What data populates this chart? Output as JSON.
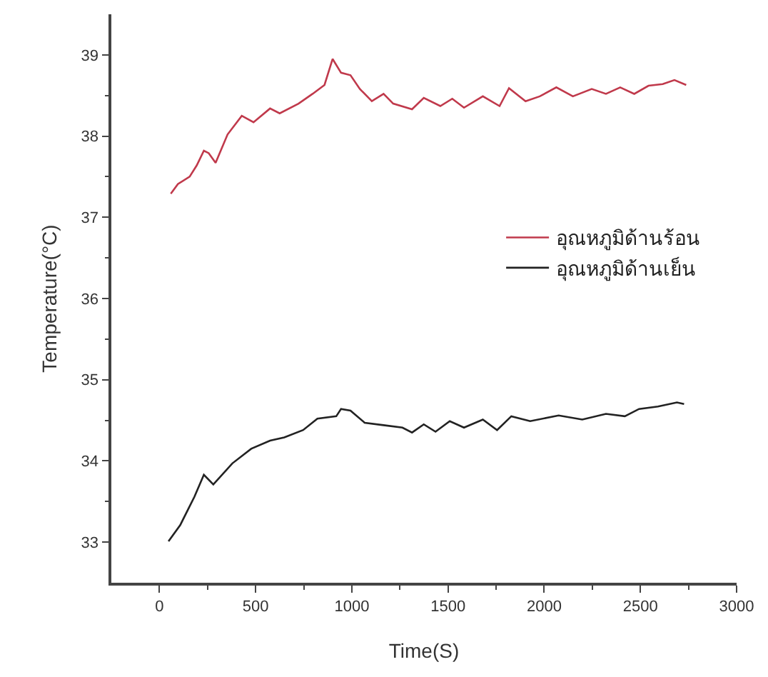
{
  "chart_data": {
    "type": "line",
    "xlabel": "Time(S)",
    "ylabel": "Temperature(°C)",
    "xlim": [
      -250,
      3000
    ],
    "xticks": [
      0,
      500,
      1000,
      1500,
      2000,
      2500,
      3000
    ],
    "ylim": [
      32.5,
      39.5
    ],
    "yticks": [
      33,
      34,
      35,
      36,
      37,
      38,
      39
    ],
    "grid": false,
    "legend": "right",
    "marker": "none",
    "line_style": "solid",
    "series": [
      {
        "name": "อุณหภูมิด้านร้อน",
        "color": "#c0394b",
        "x": [
          59,
          96,
          157,
          194,
          231,
          256,
          292,
          354,
          428,
          489,
          575,
          625,
          723,
          796,
          858,
          900,
          944,
          993,
          1042,
          1104,
          1165,
          1215,
          1313,
          1374,
          1460,
          1522,
          1583,
          1681,
          1768,
          1817,
          1903,
          1977,
          2063,
          2149,
          2247,
          2321,
          2395,
          2468,
          2542,
          2616,
          2677,
          2738
        ],
        "values": [
          37.29,
          37.41,
          37.5,
          37.64,
          37.82,
          37.79,
          37.67,
          38.02,
          38.25,
          38.17,
          38.34,
          38.28,
          38.4,
          38.52,
          38.63,
          38.95,
          38.78,
          38.75,
          38.58,
          38.43,
          38.52,
          38.4,
          38.33,
          38.47,
          38.37,
          38.46,
          38.35,
          38.49,
          38.37,
          38.59,
          38.43,
          38.49,
          38.6,
          38.49,
          38.58,
          38.52,
          38.6,
          38.52,
          38.62,
          38.64,
          38.69,
          38.63
        ]
      },
      {
        "name": "อุณหภูมิด้านเย็น",
        "color": "#222222",
        "x": [
          47,
          108,
          182,
          231,
          280,
          379,
          477,
          575,
          649,
          747,
          821,
          919,
          944,
          993,
          1067,
          1165,
          1263,
          1313,
          1374,
          1435,
          1509,
          1583,
          1681,
          1755,
          1829,
          1927,
          2075,
          2198,
          2321,
          2419,
          2493,
          2591,
          2690,
          2727
        ],
        "values": [
          33.01,
          33.21,
          33.56,
          33.83,
          33.71,
          33.97,
          34.15,
          34.25,
          34.29,
          34.38,
          34.52,
          34.55,
          34.64,
          34.62,
          34.47,
          34.44,
          34.41,
          34.35,
          34.45,
          34.36,
          34.49,
          34.41,
          34.51,
          34.38,
          34.55,
          34.49,
          34.56,
          34.51,
          34.58,
          34.55,
          34.64,
          34.67,
          34.72,
          34.7
        ]
      }
    ]
  }
}
